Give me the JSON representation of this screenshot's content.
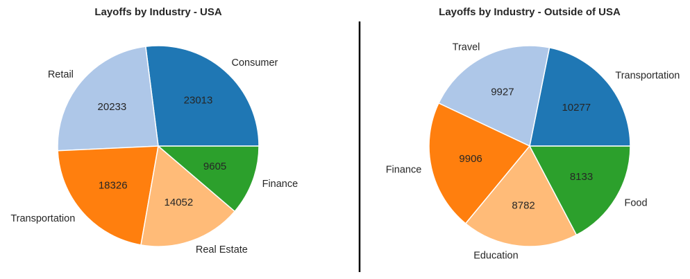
{
  "chart_data": [
    {
      "type": "pie",
      "title": "Layoffs by Industry - USA",
      "categories": [
        "Consumer",
        "Retail",
        "Transportation",
        "Real Estate",
        "Finance"
      ],
      "values": [
        23013,
        20233,
        18326,
        14052,
        9605
      ],
      "colors": [
        "#1f77b4",
        "#aec7e8",
        "#ff7f0e",
        "#ffbb78",
        "#2ca02c"
      ]
    },
    {
      "type": "pie",
      "title": "Layoffs by Industry - Outside of USA",
      "categories": [
        "Transportation",
        "Travel",
        "Finance",
        "Education",
        "Food"
      ],
      "values": [
        10277,
        9927,
        9906,
        8782,
        8133
      ],
      "colors": [
        "#1f77b4",
        "#aec7e8",
        "#ff7f0e",
        "#ffbb78",
        "#2ca02c"
      ]
    }
  ]
}
